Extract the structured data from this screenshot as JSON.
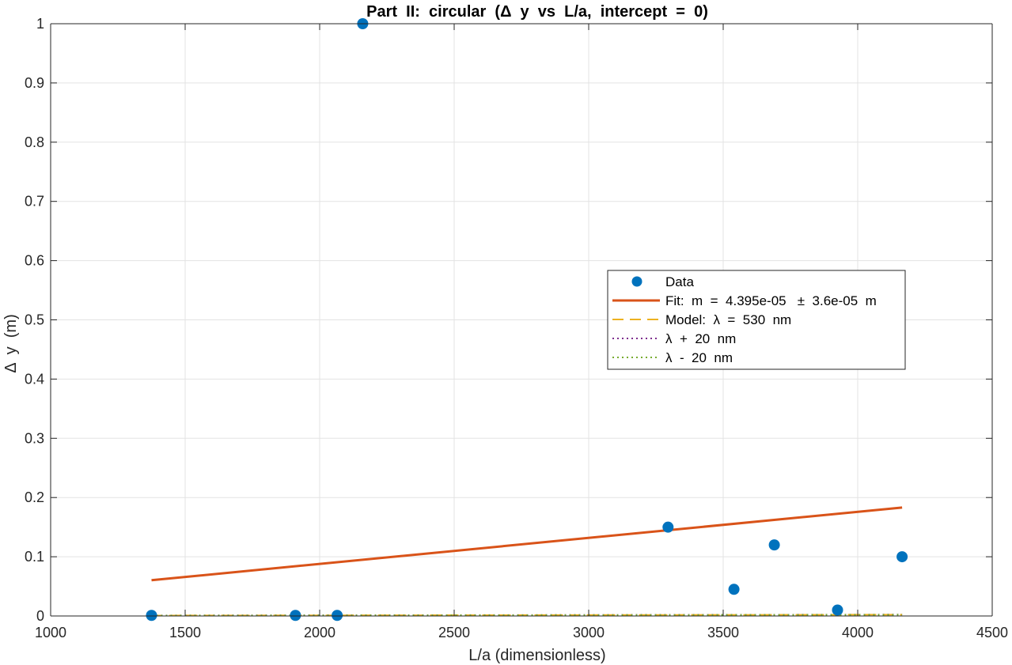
{
  "chart_data": {
    "type": "scatter",
    "title": "Part  II:  circular  (Δ  y  vs  L/a,  intercept  =  0)",
    "xlabel": "L/a (dimensionless)",
    "ylabel": "Δ  y  (m)",
    "xlim": [
      1000,
      4500
    ],
    "ylim": [
      0,
      1
    ],
    "xticks": [
      1000,
      1500,
      2000,
      2500,
      3000,
      3500,
      4000,
      4500
    ],
    "yticks": [
      0,
      0.1,
      0.2,
      0.3,
      0.4,
      0.5,
      0.6,
      0.7,
      0.8,
      0.9,
      1
    ],
    "grid": true,
    "legend_position": "right",
    "series": [
      {
        "name": "Data",
        "kind": "scatter",
        "color": "#0072BD",
        "x": [
          1375,
          1910,
          2065,
          2160,
          3295,
          3540,
          3690,
          3925,
          4165
        ],
        "y": [
          0.001,
          0.001,
          0.001,
          1.0,
          0.15,
          0.045,
          0.12,
          0.01,
          0.1
        ]
      },
      {
        "name": "Fit:  m  =  4.395e-05   ±  3.6e-05  m",
        "kind": "line",
        "style": "solid",
        "color": "#D95319",
        "x": [
          1375,
          4165
        ],
        "y": [
          0.0604,
          0.1831
        ]
      },
      {
        "name": "Model:  λ  =  530  nm",
        "kind": "line",
        "style": "dashed",
        "color": "#EDB120",
        "x": [
          1375,
          4165
        ],
        "y": [
          0.0007,
          0.0022
        ]
      },
      {
        "name": "λ  +  20  nm",
        "kind": "line",
        "style": "dotted",
        "color": "#7E2F8E",
        "x": [
          1375,
          4165
        ],
        "y": [
          0.0008,
          0.0023
        ]
      },
      {
        "name": "λ  -  20  nm",
        "kind": "line",
        "style": "dotted",
        "color": "#77AC30",
        "x": [
          1375,
          4165
        ],
        "y": [
          0.0007,
          0.0021
        ]
      }
    ]
  }
}
